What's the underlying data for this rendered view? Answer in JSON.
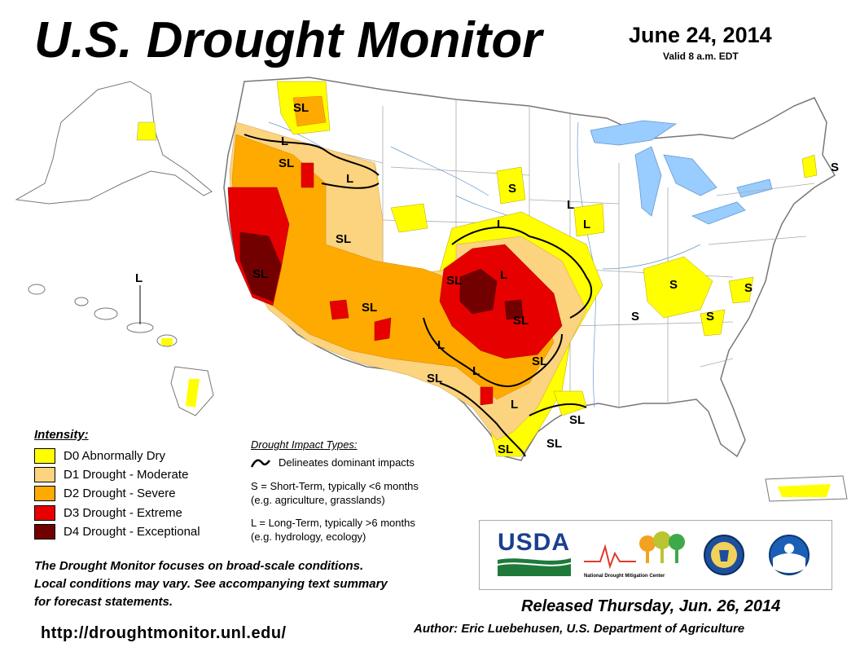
{
  "header": {
    "title": "U.S. Drought Monitor",
    "date": "June 24, 2014",
    "valid": "Valid 8 a.m. EDT"
  },
  "colors": {
    "d0": "#ffff00",
    "d1": "#fcd37f",
    "d2": "#ffaa00",
    "d3": "#e60000",
    "d4": "#730000",
    "water": "#99ccff",
    "state_line": "#aaaaaa",
    "river": "#6699cc"
  },
  "legend": {
    "title": "Intensity:",
    "items": [
      {
        "code": "D0",
        "label": "D0 Abnormally Dry",
        "color": "#ffff00"
      },
      {
        "code": "D1",
        "label": "D1 Drought - Moderate",
        "color": "#fcd37f"
      },
      {
        "code": "D2",
        "label": "D2 Drought - Severe",
        "color": "#ffaa00"
      },
      {
        "code": "D3",
        "label": "D3 Drought - Extreme",
        "color": "#e60000"
      },
      {
        "code": "D4",
        "label": "D4 Drought - Exceptional",
        "color": "#730000"
      }
    ]
  },
  "impacts": {
    "title": "Drought Impact Types:",
    "delineates": "Delineates dominant impacts",
    "short_term": "S = Short-Term, typically <6 months",
    "short_term_eg": "(e.g. agriculture, grasslands)",
    "long_term": "L = Long-Term, typically >6 months",
    "long_term_eg": "(e.g. hydrology, ecology)"
  },
  "map_labels": [
    {
      "id": "sl-wa",
      "text": "SL"
    },
    {
      "id": "l-or",
      "text": "L"
    },
    {
      "id": "sl-or",
      "text": "SL"
    },
    {
      "id": "l-id",
      "text": "L"
    },
    {
      "id": "sl-nv",
      "text": "SL"
    },
    {
      "id": "sl-ca",
      "text": "SL"
    },
    {
      "id": "l-hi",
      "text": "L"
    },
    {
      "id": "sl-az",
      "text": "SL"
    },
    {
      "id": "s-sd",
      "text": "S"
    },
    {
      "id": "l-ne",
      "text": "L"
    },
    {
      "id": "l-ia",
      "text": "L"
    },
    {
      "id": "l-ia2",
      "text": "L"
    },
    {
      "id": "l-ks",
      "text": "L"
    },
    {
      "id": "sl-co",
      "text": "SL"
    },
    {
      "id": "sl-ok",
      "text": "SL"
    },
    {
      "id": "l-nm",
      "text": "L"
    },
    {
      "id": "sl-tx-w",
      "text": "SL"
    },
    {
      "id": "l-tx",
      "text": "L"
    },
    {
      "id": "l-tx2",
      "text": "L"
    },
    {
      "id": "sl-tx-e",
      "text": "SL"
    },
    {
      "id": "sl-tx-c",
      "text": "SL"
    },
    {
      "id": "sl-tx-s",
      "text": "SL"
    },
    {
      "id": "s-ky",
      "text": "S"
    },
    {
      "id": "s-va",
      "text": "S"
    },
    {
      "id": "s-tn",
      "text": "S"
    },
    {
      "id": "s-nc",
      "text": "S"
    },
    {
      "id": "s-ne-coast",
      "text": "S"
    }
  ],
  "note": {
    "line1": "The Drought Monitor focuses on broad-scale conditions.",
    "line2": "Local conditions may vary. See accompanying text summary",
    "line3": "for forecast statements."
  },
  "url": "http://droughtmonitor.unl.edu/",
  "logos": {
    "usda": "USDA",
    "ndmc": "National Drought Mitigation Center"
  },
  "footer": {
    "released": "Released Thursday, Jun. 26, 2014",
    "author": "Author: Eric Luebehusen, U.S. Department of Agriculture"
  }
}
